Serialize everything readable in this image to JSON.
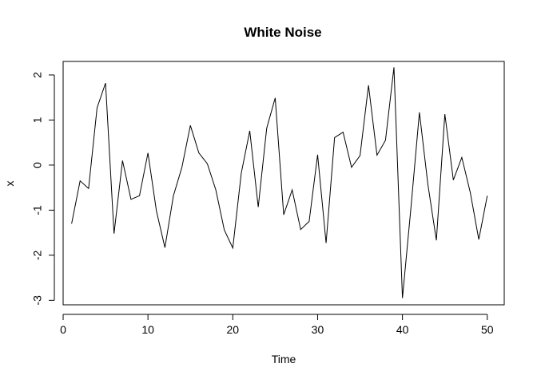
{
  "chart_data": {
    "type": "line",
    "title": "White Noise",
    "xlabel": "Time",
    "ylabel": "x",
    "xlim": [
      0,
      52
    ],
    "ylim": [
      -3.1,
      2.3
    ],
    "xticks": [
      0,
      10,
      20,
      30,
      40,
      50
    ],
    "xtick_labels": [
      "0",
      "10",
      "20",
      "30",
      "40",
      "50"
    ],
    "yticks": [
      -3,
      -2,
      -1,
      0,
      1,
      2
    ],
    "ytick_labels": [
      "-3",
      "-2",
      "-1",
      "0",
      "1",
      "2"
    ],
    "grid": false,
    "line_color": "#000000",
    "x": [
      1,
      2,
      3,
      4,
      5,
      6,
      7,
      8,
      9,
      10,
      11,
      12,
      13,
      14,
      15,
      16,
      17,
      18,
      19,
      20,
      21,
      22,
      23,
      24,
      25,
      26,
      27,
      28,
      29,
      30,
      31,
      32,
      33,
      34,
      35,
      36,
      37,
      38,
      39,
      40,
      41,
      42,
      43,
      44,
      45,
      46,
      47,
      48,
      49,
      50
    ],
    "y": [
      -1.3,
      -0.35,
      -0.52,
      1.27,
      1.82,
      -1.52,
      0.1,
      -0.76,
      -0.68,
      0.27,
      -1.02,
      -1.83,
      -0.68,
      -0.05,
      0.88,
      0.27,
      0.03,
      -0.55,
      -1.44,
      -1.84,
      -0.18,
      0.76,
      -0.93,
      0.82,
      1.49,
      -1.1,
      -0.55,
      -1.43,
      -1.25,
      0.23,
      -1.73,
      0.61,
      0.73,
      -0.05,
      0.21,
      1.77,
      0.22,
      0.55,
      2.17,
      -2.95,
      -0.95,
      1.17,
      -0.43,
      -1.67,
      1.13,
      -0.33,
      0.17,
      -0.61,
      -1.65,
      -0.68
    ]
  }
}
